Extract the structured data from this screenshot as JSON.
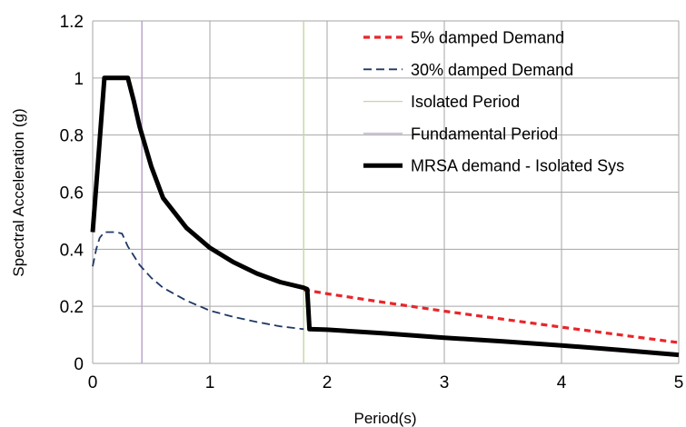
{
  "chart_data": {
    "type": "line",
    "xlabel": "Period(s)",
    "ylabel": "Spectral Acceleration (g)",
    "xlim": [
      0,
      5
    ],
    "ylim": [
      0,
      1.2
    ],
    "x_ticks": [
      "0",
      "1",
      "2",
      "3",
      "4",
      "5"
    ],
    "y_ticks": [
      "0",
      "0.2",
      "0.4",
      "0.6",
      "0.8",
      "1",
      "1.2"
    ],
    "grid": true,
    "legend_position": "top-right",
    "series": [
      {
        "name": "5% damped Demand",
        "color": "#e8262a",
        "style": "dotted-thick",
        "x": [
          1.8,
          2.0,
          2.5,
          3.0,
          3.5,
          4.0,
          4.5,
          5.0
        ],
        "y": [
          0.258,
          0.244,
          0.213,
          0.183,
          0.155,
          0.127,
          0.1,
          0.073
        ]
      },
      {
        "name": "30% damped Demand",
        "color": "#1f3864",
        "style": "dashed",
        "x": [
          0.0,
          0.03,
          0.06,
          0.1,
          0.15,
          0.2,
          0.25,
          0.3,
          0.4,
          0.5,
          0.6,
          0.8,
          1.0,
          1.2,
          1.4,
          1.6,
          1.8
        ],
        "y": [
          0.34,
          0.4,
          0.44,
          0.46,
          0.46,
          0.46,
          0.455,
          0.41,
          0.345,
          0.3,
          0.265,
          0.22,
          0.185,
          0.163,
          0.145,
          0.13,
          0.12
        ]
      },
      {
        "name": "MRSA demand - Isolated Sys",
        "color": "#000000",
        "style": "solid-thick",
        "x": [
          0.0,
          0.05,
          0.1,
          0.15,
          0.2,
          0.3,
          0.35,
          0.4,
          0.5,
          0.6,
          0.8,
          1.0,
          1.2,
          1.4,
          1.6,
          1.8,
          1.83,
          1.85,
          2.0,
          2.5,
          3.0,
          3.5,
          4.0,
          4.5,
          5.0
        ],
        "y": [
          0.46,
          0.73,
          1.0,
          1.0,
          1.0,
          1.0,
          0.92,
          0.83,
          0.69,
          0.58,
          0.475,
          0.405,
          0.355,
          0.315,
          0.285,
          0.265,
          0.26,
          0.12,
          0.118,
          0.105,
          0.09,
          0.077,
          0.063,
          0.047,
          0.03
        ]
      }
    ],
    "vertical_lines": [
      {
        "name": "Isolated Period",
        "x": 1.8,
        "color": "#c4d79b"
      },
      {
        "name": "Fundamental Period",
        "x": 0.42,
        "color": "#b3a2c7"
      }
    ],
    "legend": [
      {
        "label": "5% damped Demand",
        "color": "#e8262a",
        "style": "dotted-thick"
      },
      {
        "label": "30% damped Demand",
        "color": "#1f3864",
        "style": "dashed"
      },
      {
        "label": "Isolated Period",
        "color": "#c4d79b",
        "style": "thin"
      },
      {
        "label": "Fundamental Period",
        "color": "#b3a2c7",
        "style": "thin"
      },
      {
        "label": "MRSA demand - Isolated Sys",
        "color": "#000000",
        "style": "solid-thick"
      }
    ]
  }
}
